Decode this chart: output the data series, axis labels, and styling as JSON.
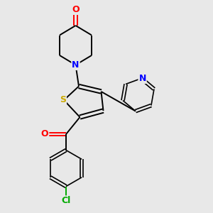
{
  "background_color": "#e8e8e8",
  "bond_color": "#000000",
  "atom_colors": {
    "N": "#0000ff",
    "O": "#ff0000",
    "S": "#ccaa00",
    "Cl": "#00aa00",
    "C": "#000000"
  }
}
